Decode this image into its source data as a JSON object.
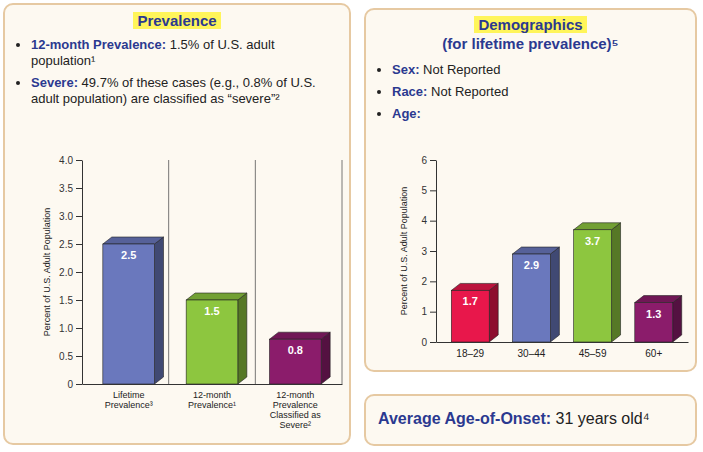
{
  "chart_data": [
    {
      "type": "bar",
      "categories": [
        "Lifetime Prevalence³",
        "12-month Prevalence¹",
        "12-month Prevalence Classified as Severe²"
      ],
      "values": [
        2.5,
        1.5,
        0.8
      ],
      "colors": [
        "#6a78bd",
        "#8dc63f",
        "#8b1c6b"
      ],
      "y_label": "Percent of U.S. Adult Population",
      "ylim": [
        0,
        4
      ],
      "yticks": [
        0,
        0.5,
        {
          "value": 1,
          "label": "1.0"
        },
        1.5,
        {
          "value": 2,
          "label": "2.0"
        },
        2.5,
        {
          "value": 3,
          "label": "3.0"
        },
        3.5,
        {
          "value": 4,
          "label": "4.0"
        }
      ],
      "data_labels": true,
      "grid": "x"
    },
    {
      "type": "bar",
      "categories": [
        "18–29",
        "30–44",
        "45–59",
        "60+"
      ],
      "values": [
        1.7,
        2.9,
        3.7,
        1.3
      ],
      "colors": [
        "#e8174b",
        "#6a78bd",
        "#8dc63f",
        "#8b1c6b"
      ],
      "y_label": "Percent of U.S. Adult Population",
      "ylim": [
        0,
        6
      ],
      "yticks": [
        0,
        1,
        2,
        3,
        4,
        5,
        6
      ],
      "data_labels": true,
      "grid": false
    }
  ],
  "prevalence_panel": {
    "heading": "Prevalence",
    "bullets": [
      {
        "label": "12-month Prevalence:",
        "text": "1.5% of U.S. adult population¹"
      },
      {
        "label": "Severe:",
        "text": "49.7% of these cases (e.g., 0.8% of U.S. adult population) are classified as “severe”²"
      }
    ]
  },
  "demographics_panel": {
    "heading": "Demographics",
    "subheading": "(for lifetime prevalence)⁵",
    "bullets": [
      {
        "label": "Sex:",
        "text": "Not Reported"
      },
      {
        "label": "Race:",
        "text": "Not Reported"
      },
      {
        "label": "Age:"
      }
    ]
  },
  "onset_box": {
    "label": "Average Age-of-Onset:",
    "text": "31 years old⁴"
  }
}
